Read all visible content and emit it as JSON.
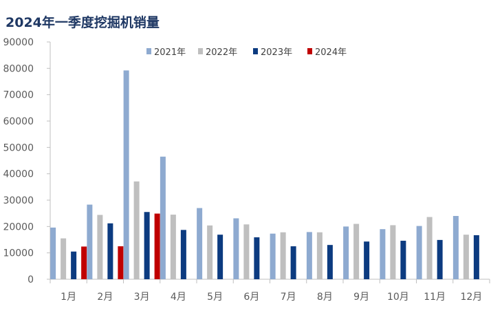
{
  "chart_data": {
    "type": "bar",
    "title": "2024年一季度挖掘机销量",
    "categories": [
      "1月",
      "2月",
      "3月",
      "4月",
      "5月",
      "6月",
      "7月",
      "8月",
      "9月",
      "10月",
      "11月",
      "12月"
    ],
    "series": [
      {
        "name": "2021年",
        "color": "#8eaad0",
        "values": [
          19600,
          28300,
          79200,
          46500,
          27000,
          23100,
          17300,
          17900,
          20000,
          19000,
          20200,
          24000
        ]
      },
      {
        "name": "2022年",
        "color": "#bfbfbf",
        "values": [
          15500,
          24400,
          37100,
          24500,
          20400,
          20800,
          17800,
          17800,
          21000,
          20500,
          23600,
          16900
        ]
      },
      {
        "name": "2023年",
        "color": "#0c3b80",
        "values": [
          10500,
          21200,
          25500,
          18700,
          16900,
          15900,
          12500,
          13000,
          14300,
          14600,
          14900,
          16700
        ]
      },
      {
        "name": "2024年",
        "color": "#c00000",
        "values": [
          12400,
          12500,
          24900,
          null,
          null,
          null,
          null,
          null,
          null,
          null,
          null,
          null
        ]
      }
    ],
    "ylim": [
      0,
      90000
    ],
    "yticks": [
      0,
      10000,
      20000,
      30000,
      40000,
      50000,
      60000,
      70000,
      80000,
      90000
    ],
    "xlabel": "",
    "ylabel": "",
    "grid": false,
    "legend_position": "top-center"
  }
}
